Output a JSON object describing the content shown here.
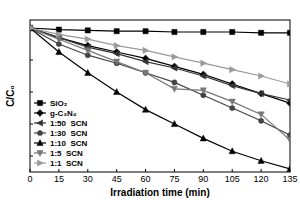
{
  "chart_data": {
    "type": "line",
    "x_label": "Irradiation time (min)",
    "y_label": "C/C₀",
    "x": [
      0,
      15,
      30,
      45,
      60,
      75,
      90,
      105,
      120,
      135
    ],
    "xlim": [
      0,
      135
    ],
    "xticks": [
      0,
      15,
      30,
      45,
      60,
      75,
      90,
      105,
      120,
      135
    ],
    "ylim": [
      0.1,
      1.05
    ],
    "yticks": [
      0.2,
      0.4,
      0.6,
      0.8,
      1.0
    ],
    "tick_labels": "x",
    "grid": false,
    "legend": "lower left",
    "series": [
      {
        "name": "SiO₂",
        "color": "#000000",
        "marker": "square",
        "values": [
          1.0,
          0.99,
          0.985,
          0.98,
          0.98,
          0.975,
          0.975,
          0.975,
          0.97,
          0.97
        ]
      },
      {
        "name": "g-C₃N₄",
        "color": "#000000",
        "marker": "diamond",
        "values": [
          1.0,
          0.94,
          0.89,
          0.85,
          0.81,
          0.76,
          0.71,
          0.65,
          0.59,
          0.53
        ]
      },
      {
        "name": "1:50  SCN",
        "color": "#333333",
        "marker": "triangle-left",
        "values": [
          1.0,
          0.94,
          0.88,
          0.84,
          0.79,
          0.75,
          0.7,
          0.64,
          0.59,
          0.55
        ]
      },
      {
        "name": "1:30  SCN",
        "color": "#444444",
        "marker": "circle",
        "values": [
          1.0,
          0.9,
          0.83,
          0.78,
          0.72,
          0.66,
          0.58,
          0.5,
          0.42,
          0.33
        ]
      },
      {
        "name": "1:10  SCN",
        "color": "#000000",
        "marker": "triangle-up",
        "values": [
          1.0,
          0.85,
          0.72,
          0.6,
          0.49,
          0.4,
          0.31,
          0.23,
          0.17,
          0.12
        ]
      },
      {
        "name": "1:5  SCN",
        "color": "#777777",
        "marker": "triangle-down",
        "values": [
          1.0,
          0.93,
          0.86,
          0.79,
          0.72,
          0.62,
          0.61,
          0.54,
          0.46,
          0.3
        ]
      },
      {
        "name": "1:1  SCN",
        "color": "#999999",
        "marker": "triangle-right",
        "values": [
          1.0,
          0.96,
          0.93,
          0.89,
          0.86,
          0.82,
          0.78,
          0.74,
          0.7,
          0.65
        ]
      }
    ]
  }
}
